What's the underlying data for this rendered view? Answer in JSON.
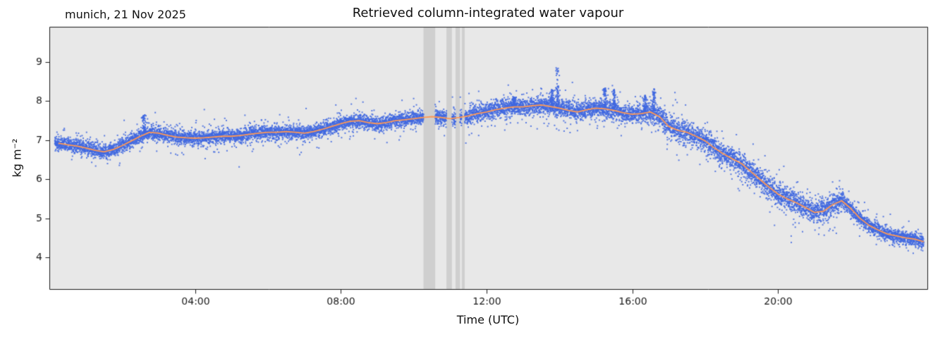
{
  "chart_data": {
    "type": "scatter",
    "title": "Retrieved column-integrated water vapour",
    "annotation": "munich, 21 Nov 2025",
    "xlabel": "Time (UTC)",
    "ylabel": "kg m⁻²",
    "xlim_hours": [
      0,
      24.1
    ],
    "ylim": [
      3.19,
      9.9
    ],
    "yticks": {
      "values": [
        4,
        5,
        6,
        7,
        8,
        9
      ],
      "labels": [
        "4",
        "5",
        "6",
        "7",
        "8",
        "9"
      ]
    },
    "xticks": {
      "hours": [
        4,
        8,
        12,
        16,
        20
      ],
      "labels": [
        "04:00",
        "08:00",
        "12:00",
        "16:00",
        "20:00"
      ]
    },
    "colors": {
      "scatter": "#4169e1",
      "line": "#ff9955",
      "plot_bg": "#e8e8e8",
      "gap_band": "#cfcfcf",
      "axis": "#1a1a1a",
      "figure_bg": "#ffffff"
    },
    "gap_bands_hours": [
      [
        10.27,
        10.59
      ],
      [
        10.9,
        11.05
      ],
      [
        11.15,
        11.27
      ],
      [
        11.32,
        11.4
      ]
    ],
    "smooth_series": {
      "hours": [
        0.25,
        0.5,
        0.75,
        1.0,
        1.25,
        1.5,
        1.75,
        2.0,
        2.25,
        2.5,
        2.75,
        3.0,
        3.25,
        3.5,
        3.75,
        4.0,
        4.25,
        4.5,
        4.75,
        5.0,
        5.25,
        5.5,
        5.75,
        6.0,
        6.25,
        6.5,
        6.75,
        7.0,
        7.25,
        7.5,
        7.75,
        8.0,
        8.25,
        8.5,
        8.75,
        9.0,
        9.25,
        9.5,
        9.75,
        10.0,
        10.25,
        10.5,
        10.75,
        11.0,
        11.25,
        11.5,
        11.75,
        12.0,
        12.25,
        12.5,
        12.75,
        13.0,
        13.25,
        13.5,
        13.75,
        14.0,
        14.25,
        14.5,
        14.75,
        15.0,
        15.25,
        15.5,
        15.75,
        16.0,
        16.25,
        16.5,
        16.75,
        17.0,
        17.25,
        17.5,
        17.75,
        18.0,
        18.25,
        18.5,
        18.75,
        19.0,
        19.25,
        19.5,
        19.75,
        20.0,
        20.25,
        20.5,
        20.75,
        21.0,
        21.25,
        21.5,
        21.75,
        22.0,
        22.25,
        22.5,
        22.75,
        23.0,
        23.25,
        23.5,
        23.75,
        24.0
      ],
      "values": [
        6.92,
        6.88,
        6.85,
        6.8,
        6.74,
        6.7,
        6.76,
        6.86,
        6.98,
        7.1,
        7.2,
        7.18,
        7.12,
        7.08,
        7.06,
        7.05,
        7.06,
        7.08,
        7.1,
        7.1,
        7.12,
        7.15,
        7.18,
        7.2,
        7.2,
        7.22,
        7.2,
        7.18,
        7.22,
        7.28,
        7.35,
        7.42,
        7.48,
        7.5,
        7.45,
        7.42,
        7.45,
        7.5,
        7.52,
        7.55,
        7.58,
        7.6,
        7.58,
        7.55,
        7.58,
        7.62,
        7.68,
        7.72,
        7.78,
        7.82,
        7.85,
        7.85,
        7.88,
        7.9,
        7.86,
        7.82,
        7.76,
        7.72,
        7.78,
        7.82,
        7.8,
        7.76,
        7.7,
        7.66,
        7.68,
        7.72,
        7.6,
        7.35,
        7.25,
        7.2,
        7.1,
        6.98,
        6.8,
        6.65,
        6.52,
        6.4,
        6.2,
        6.0,
        5.8,
        5.62,
        5.5,
        5.4,
        5.28,
        5.15,
        5.18,
        5.35,
        5.45,
        5.25,
        5.0,
        4.82,
        4.7,
        4.6,
        4.55,
        4.5,
        4.47,
        4.4
      ]
    },
    "spikes": [
      {
        "hour": 13.95,
        "top": 8.85
      },
      {
        "hour": 13.8,
        "top": 8.3
      },
      {
        "hour": 15.25,
        "top": 8.35
      },
      {
        "hour": 15.5,
        "top": 8.3
      },
      {
        "hour": 16.6,
        "top": 8.32
      },
      {
        "hour": 16.35,
        "top": 8.15
      },
      {
        "hour": 12.75,
        "top": 8.1
      },
      {
        "hour": 2.6,
        "top": 7.65
      }
    ],
    "noise": {
      "seed": 42,
      "amplitude": 0.085,
      "points_per_hour": 520,
      "data_start_hour": 0.15,
      "data_end_hour": 24.0,
      "boosts": [
        {
          "from": 11.5,
          "to": 16.5,
          "factor": 1.25
        },
        {
          "from": 16.5,
          "to": 21.8,
          "factor": 1.6
        }
      ]
    }
  }
}
